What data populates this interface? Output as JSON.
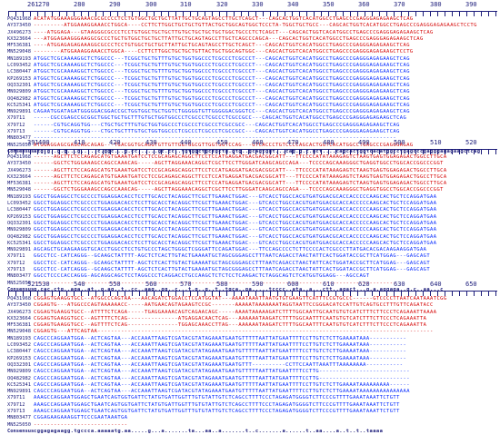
{
  "names": [
    "PQ431968",
    "AY373450",
    "JX496273",
    "KX323664",
    "MF536381",
    "MN529048",
    "MN189193",
    "LC093452",
    "LC380447",
    "KP269153",
    "OQ332301",
    "MN929809",
    "OQ482982",
    "KC525341",
    "MN929891",
    "X79711",
    "X79712",
    "X79713",
    "MN803477",
    "MN525050"
  ],
  "consensus_label": "Consensus",
  "blocks": [
    {
      "ruler": [
        "261",
        "270",
        "280",
        "290",
        "300",
        "310",
        "320",
        "330",
        "340",
        "350",
        "360",
        "370",
        "380",
        "390"
      ],
      "seqs": [
        "ACATATGGAAAGGGAAACGCGCCCCTCCTGTGGCTGCTGCTTATTGCTGCAGTAGCCTTGCTCAGCT---CAGCACTGGTCACATGGCCTGAGCCCGAGGGAGAGAAGCTCAG",
        "---------ATGGAAAGGAAACCTGGCA----CCTTCTTGGCTGCTGCTGTTACTGCTGGCAGTGGCTCCCTA-TGGCTGCTGCC---CAGCACTGGTCACATGGCCTGAGCCCGAGGGAGAGAAGCTCCTG",
        "----ATGGAGA---GTAAGGGCGCCCTCCTGTGGCTGCTGCTTGTGCTGCTGCTGCTGGCTGCCCTCTCAGCT---CAGCACTGGTCACATGGCCTGAGCCCGAGGGAGAGAAGCTCAG",
        "---ATGGAGAAGGGAAGGCGCCCTGCTGTGGCTGCTGCTTATTGCTGCAGTAGCCTTGCTCAGCCCAGCA---CAGCACTGGTCACATGGCCTGAGCCCGAGGGAGAGAAGCTCAG",
        "----ATGGAGAGAGAAAGGCGCCCTCCTGTGGCTGCTGCTTATTGCTGCAGTAGCCTTGCTCAGCT---CAGCACTGGTCACATGGCCTGAGCCCGAGGGAGAGAAGCTCAG",
        "--------ATGGAAAGGAAACCTGGCA----CCTTCTTGGCTGCTGCTGTTACTGCTGGCAGTGGC---CAGCACTGGTCACATGGCCTGAGCCCGAGGGAGAGAAGCTCCTG",
        "ATGGCTCGCAAAAGGCTCTGGCCC---TCGGCTGCTGTTTGTGCTGGTGGCCCTCGCCCTCGCCCT---CAGCACTGGTCACATGGCCTGAGCCCGAGGGAGAGAAGCTCAG",
        "ATGGCTCGCAAAAGGCTCTGGCCC---TCGGCTGCTGTTTGTGCTGGTGGCCCTCGCCCTCGCCCT---CAGCACTGGTCACATGGCCTGAGCCCGAGGGAGAGAAGCTCAG",
        "ATGGCTCGCAAAAGGCTCTGGCCC---TCGGCTGCTGTTTGTGCTGGTGGCCCTCGCCCTCGCCCT---CAGCACTGGTCACATGGCCTGAGCCCGAGGGAGAGAAGCTCAG",
        "ATGGCTCGCAAAAGGCTCTGGCCC---TCGGCTGCTGTTTGTGCTGGTGGCCCTCGCCCTCGCCCT---CAGCACTGGTCACATGGCCTGAGCCCGAGGGAGAGAAGCTCAG",
        "ATGGCTCGCAAAAGGCTCTGGCCC---TCGGCTGCTGTTTGTGCTGGTGGCCCTCGCCCTCGCCCT---CAGCACTGGTCACATGGCCTGAGCCCGAGGGAGAGAAGCTCAG",
        "ATGGCTCGCAAAAGGCTCTGGCCC---TCGGCTGCTGTTTGTGCTGGTGGCCCTCGCCCTCGCCCT---CAGCACTGGTCACATGGCCTGAGCCCGAGGGAGAGAAGCTCAG",
        "ATGGCTCGCAAAAGGCTCTGGCCC---TCGGCTGCTGTTTGTGCTGGTGGCCCTCGCCCTCGCCCT---CAGCACTGGTCACATGGCCTGAGCCCGAGGGAGAGAAGCTCAG",
        "ATGGCTCGCAAAAGGCTCTGGCCC---TCGGCTGCTGTTTGTGCTGGTGGCCCTCGCCCTCGCCCT---CAGCACTGGTCACATGGCCTGAGCCCGAGGGAGAGAAGCTCAG",
        "CAGAATGGATAGATGGGGGACGGACCGCTGGTGGCTGCTGGTCTGGGGGTGTTGGGGGACGGGTCC---CAGCACTGGTCACATGGCCTGAGCCCGAGGGAGAGAAGCTCAG",
        "-----CGCCGAGCCGCGGCTGGCTGCTGCTTTGTGCTGGTGGCCCTCGCCCTCGCCCTCGCCGCC---CAGCACTGGTCACATGGCCTGAGCCCGAGGGAGAGAAGCTCAG",
        "------CGTGCAGGTGG---CTGCTGCTTTGTGCTGGTGGCCCTCGCCCTCGCCCTCGCCGCC---CAGCACTGGTCACATGGCCTGAGCCCGAGGGAGAGAAGCTCAG",
        "------CGTGCAGGTGG---CTGCTGCTTTGTGCTGGTGGCCCTCGCCCTCGCCCTCGCCGCC---CAGCACTGGTCACATGGCCTGAGCCCGAGGGAGAGAAGCTCAG",
        "------------------------------------------------------------------------------------------------------------",
        "ATGGAGGAGCGAGCAGCAGAG---TGACGGTGCAGGTGTTGTTGGTGGCGTTGGTGGTCCAG---GTCACCCTGTCCCCAGCACTGGTCACATGGCCTGAGCCCGAGGGAGAG"
      ],
      "colors": [
        "r",
        "r",
        "r",
        "r",
        "r",
        "r",
        "b",
        "b",
        "b",
        "b",
        "b",
        "b",
        "b",
        "b",
        "b",
        "b",
        "b",
        "b",
        "b",
        "r"
      ],
      "consensus": "atg.g..g.g...g.....c.ggc...g.cc......gc.cc..tgtggctgctgctg.gtg..gcagtggt...cag.g.c.gct....cagcactggtcacatggcctgagcccgagggagagaagctcag",
      "consensus_ticks": [
        "391",
        "400",
        "410",
        "420",
        "430",
        "440",
        "450",
        "460",
        "470",
        "480",
        "490",
        "500",
        "510",
        "520"
      ]
    },
    {
      "ruler": [
        "391",
        "400",
        "410",
        "420",
        "430",
        "440",
        "450",
        "460",
        "470",
        "480",
        "490",
        "500",
        "510",
        "520"
      ],
      "seqs": [
        "------AGCTTCTCCAGAGCATGTGAAATGATCCTCCGCAGAGCAGGCTTCCTCCATGAGGATGACGACGGCATT---TTCCCCATATAAAGAGTCTAAGTGAGTGGAGAGACTGGCCTTGCA",
        "------GGCTCTGGGAAAGCCAGCCAAACAG-----AGCTTAGGAAACAGGCTCGCTTCCTTGGGATCAAGCAGCCAGA---TCCCCAGCAAAGGGCTGAGGTGGCCTGGCACCGGCCCGGT",
        "------AGCTTCTCCAGAGCATGTGAAATGATCCTCCGCAGAGCAGGCTTCCTCCATGAGGATGACGACGGCATT---TTCCCCATATAAAGAGTCTAAGTGAGTGGAGAGACTGGCCTTGCA",
        "------AGCTTCTCCAGAGCATGTGAAATGATCCTCCGCAGAGCAGGCTTCCTCCATGAGGATGACGACGGCATT---TTCCCCATATAAAGAGTCTAAGTGAGTGGAGAGACTGGCCTTGCA",
        "------AGCTTCTCCAGAGCATGTGAAATGATCCTCCGCAGAGCAGGCTTCCTCCATGAGGATGACGACGGCATT---TTCCCCATATAAAGAGTCTAAGTGAGTGGAGAGACTGGCCTTGCA",
        "------GGCTCTGGGAAAGCCAGCCAAACAG-----AGCTTAGGAAACAGGCTCGCTTCCTTGGGATCAAGCAGCCAGA---TCCCCAGCAAAGGGCTGAGGTGGCCTGGCACCGGCCCGGT",
        "GGCCTGGAGGCCTCGCCCCTGGAGGACACCTCCTTGCACCTACAGGCTTCGCTTGAAACTGGAC---GTCACCTGGCCACGTGATGGACGCACCACCCCCAAGCACTGCTCCAGGATGAA",
        "GGCCTGGAGGCCTCGCCCCTGGAGGACACCTCCTTGCACCTACAGGCTTCGCTTGAAACTGGAC---GTCACCTGGCCACGTGATGGACGCACCACCCCCAAGCACTGCTCCAGGATGAA",
        "GGCCTGGAGGCCTCGCCCCTGGAGGACACCTCCTTGCACCTACAGGCTTCGCTTGAAACTGGAC---GTCACCTGGCCACGTGATGGACGCACCACCCCCAAGCACTGCTCCAGGATGAA",
        "GGCCTGGAGGCCTCGCCCCTGGAGGACACCTCCTTGCACCTACAGGCTTCGCTTGAAACTGGAC---GTCACCTGGCCACGTGATGGACGCACCACCCCCAAGCACTGCTCCAGGATGAA",
        "GGCCTGGAGGCCTCGCCCCTGGAGGACACCTCCTTGCACCTACAGGCTTCGCTTGAAACTGGAC---GTCACCTGGCCACGTGATGGACGCACCACCCCCAAGCACTGCTCCAGGATGAA",
        "GGCCTGGAGGCCTCGCCCCTGGAGGACACCTCCTTGCACCTACAGGCTTCGCTTGAAACTGGAC---GTCACCTGGCCACGTGATGGACGCACCACCCCCAAGCACTGCTCCAGGATGAA",
        "GGCCTGGAGGCCTCGCCCCTGGAGGACACCTCCTTGCACCTACAGGCTTCGCTTGAAACTGGAC---GTCACCTGGCCACGTGATGGACGCACCACCCCCAAGCACTGCTCCAGGATGAA",
        "GGCCTGGAGGCCTCGCCCCTGGAGGACACCTCCTTGCACCTACAGGCTTCGCTTGAAACTGGAC---GTCACCTGGCCACGTGATGGACGCACCACCCCCAAGCACTGCTCCAGGATGAA",
        "AGCAGCTGCAAGAAGGTGCACCTGGCCTCCTGTGCCCTAGCTGGGCTCGGGATTCCAGATGGAC---TTCCAGCCCCTCTTCCCCACTCGCCCTTATGACACGACAAGAAGGATGAA",
        "GGCCTCC-CATCAGGG--GCAAGCTATTTT-AGCTCTCACTTGTACTGAAAATGCTAGCGGGAGCCTTTAATCAGACCTAACTATTCACTGGATACCGCTTCATGGAG---GAGCAGT",
        "GGCCTCC-CATCAGGG--GCAAGCTATTTT-AGCTCTCACTTGTACTGAAAATGCTAGCGGGAGCCTTTAATCAGACCTAACTATTCACTGGATACCGCTTCATGGAG---GAGCAGT",
        "GGCCTCC-CATCAGGG--GCAAGCTATTTT-AGCTCTCACTTGTACTGAAAATGCTAGCGGGAGCCTTTAATCAGACCTAACTATTCACTGGATACCGCTTCATGGAG---GAGCAGT",
        "GGCCTCCCCACCAGGG-AGCAGGCAGCTCCTAGGCCCTCAGGACCTGCCAAGCTCTCTCCTCAAGACTCTAGGCAGTCTCATGGTGGAGG---AGCCAGT",
        "------------------------------------------------------------------------------------------------------------"
      ],
      "colors": [
        "r",
        "r",
        "r",
        "r",
        "r",
        "r",
        "b",
        "b",
        "b",
        "b",
        "b",
        "b",
        "b",
        "b",
        "b",
        "b",
        "b",
        "b",
        "b",
        "r"
      ],
      "consensus": "g.cac.ctg..aga..at..g.ag..t..cc..aag..gg..c...t.g..g..t..tgca..ga.....tcccc..ata..a...ctt..agact...g.a.aggaga..g.c..aa...c",
      "consensus_ticks": [
        "521",
        "530",
        "540",
        "550",
        "560",
        "570",
        "580",
        "590",
        "600",
        "610",
        "620",
        "630",
        "640",
        "650"
      ]
    },
    {
      "ruler": [
        "521",
        "530",
        "540",
        "550",
        "560",
        "570",
        "580",
        "590",
        "600",
        "610",
        "620",
        "630",
        "640",
        "650"
      ],
      "seqs": [
        "CGGAGTGAAGGTGCC--ATGGCCCAGTAA---AACAGATCTGGACCTCCATGGTAT---AAAATAAATTAATGTGTGAAGTTCATTTCCGTGCCC------GTCCCCTTAATCAATAAATCGG",
        "CGGAGTG---ATGGCCCAGTAAAAAACC-----AATGAACAGTAGAAGTCCGC-------AAAAATAAAAAAATAGGTAATTCCGGGACATCCATTGTCAGTGCCTTTGTTCAGATACC",
        "CGGAGTGAAGGTGCC--ATTTTCTCAGA-----TGAGGAAAACAGTCAGAACAGC-----AAAATAAAAAGATCTTTTGGCAATTGCAATGTGTCATCTTTCTTCCCTCAGAAATTAAAA",
        "CGGAGTGAAGGTGCC--AGTTTTCTCAG---------------ATGAGGACAACTCAG---AAAAAATAAGATCTTTTGGCAATTTCAATGTGTCATCTTTCTTCCCTCAGAAATTA",
        "CGGAGTGAAGGTGCC--AGTTTTCTCAG---------------TGGAGCAAACCTTAG---AAAAAATAAGATCTTTTGGCAATTTCAATGTGTCATCTTTCTTCCCTCAGAAATTA",
        "CGGAGTG---ATTCAGTAA----------------------------------------------------------------------------------------------------",
        "CAGCCCAGGAATGGA--ACTCAGTAA---ACCAAATTAAGTCGATACGTATAGAAATGAATGTTTTTAATTATGAATTTTCCTTGTCTCTTGAAAATAAA-----------",
        "CAGCCCAGGAATGGA--ACTCAGTAA---ACCAAATTAAGTCGATACGTATAGAAATGAATGTTTTTAATTATGAATTTTCCTTGTCTCTTGAAAATAAA-----------",
        "CAGCCCAGGAATGGA--ACTCAGTAA---ACCAAATTAAGTCGATACGTATAGAAATGAATGTTTTTAATTATGAATTTTCCTTGTCTCTTGAAAATAAA-----------",
        "CAGCCCAGGAATGGA--ACTCAGTAA---ACCAAATTAAGTCGATACGTATAGAAATGAATGTTTTTAATTATGAATTTTCCTTGTCTCTTGAAAATAAA-----------",
        "CAGCCCAGGAATGGA--ACTCAGTAA---ACCAAATTAAGTCGATACGTATAGAAATGAATGTTT----------CCTTCCAATTAAATTTAAAAAAAA-----------",
        "CAGCCCAGGAATGGA--ACTCAGTAA---ACCAAATTAAGTCGATACGTATAGAAATGAATGTTTTTAATTATGAATTTTCCTTG---------------------------",
        "CAGCCCAGGAATGGA--ACTCAGTAA---ACCAAATTAAGTCGATACGTATAGAAATGAATGTTTTTAATTATGAATTTTCCTTG---------------------------",
        "CAGCCCAGGAATGGA--ACTCAGTAA---ACCAAATTAAGTCGATACGTATAGAAATGAATGTTTTTAATTATGAATTTTCCTTGTCTCTTGAAAATAAAAAAAAA------",
        "CAGCCCAGGAATGGA--ACTCAGTAA---ACCAAATTAAGTCGATACGTATAGAAATGAATGTTTTTAATTATGAATTTTCCTTGTCTCTTGAAAATAAAAAAAAAAAAAAA",
        "AAAGCCAGGAATGGAGCTGAATCAGTGGTGATTCTATGTGATTGGTTTGTGTATTGTCTCAGCCTTTTCCCTAGAGATGGGGTCTTCCCGTTTTGAAATAAATTCTGTT",
        "AAAGCCAGGAATGGAGCTGAATCAGTGGTGATTCTATGTGATTGGTTTGTGTATTGTCTCAGCCTTTTCCCTAGAGATGGGGTCTTCCCGTTTTGAAATAAATTCTGTT",
        "AAAGCCAGGAATGGAGCTGAATCAGTGGTGATTCTATGTGATTGGTTTGTGTATTGTCTCAGCCTTTTCCCTAGAGATGGGGTCTTCCCGTTTTGAAATAAATTCTGTT",
        "CGGAGAAGAAAGGTTCCCGAATAAATGA",
        "----------------------------"
      ],
      "colors": [
        "r",
        "r",
        "r",
        "r",
        "r",
        "r",
        "b",
        "b",
        "b",
        "b",
        "b",
        "b",
        "b",
        "b",
        "b",
        "b",
        "b",
        "b",
        "b",
        "r"
      ],
      "consensus": "cggagagaagg.tgccca.aaaaatg.aa.....g...a.......ta...aa..a.......t..c.......a......t..aa....a..t..t..taaaa",
      "consensus_ticks": []
    }
  ]
}
